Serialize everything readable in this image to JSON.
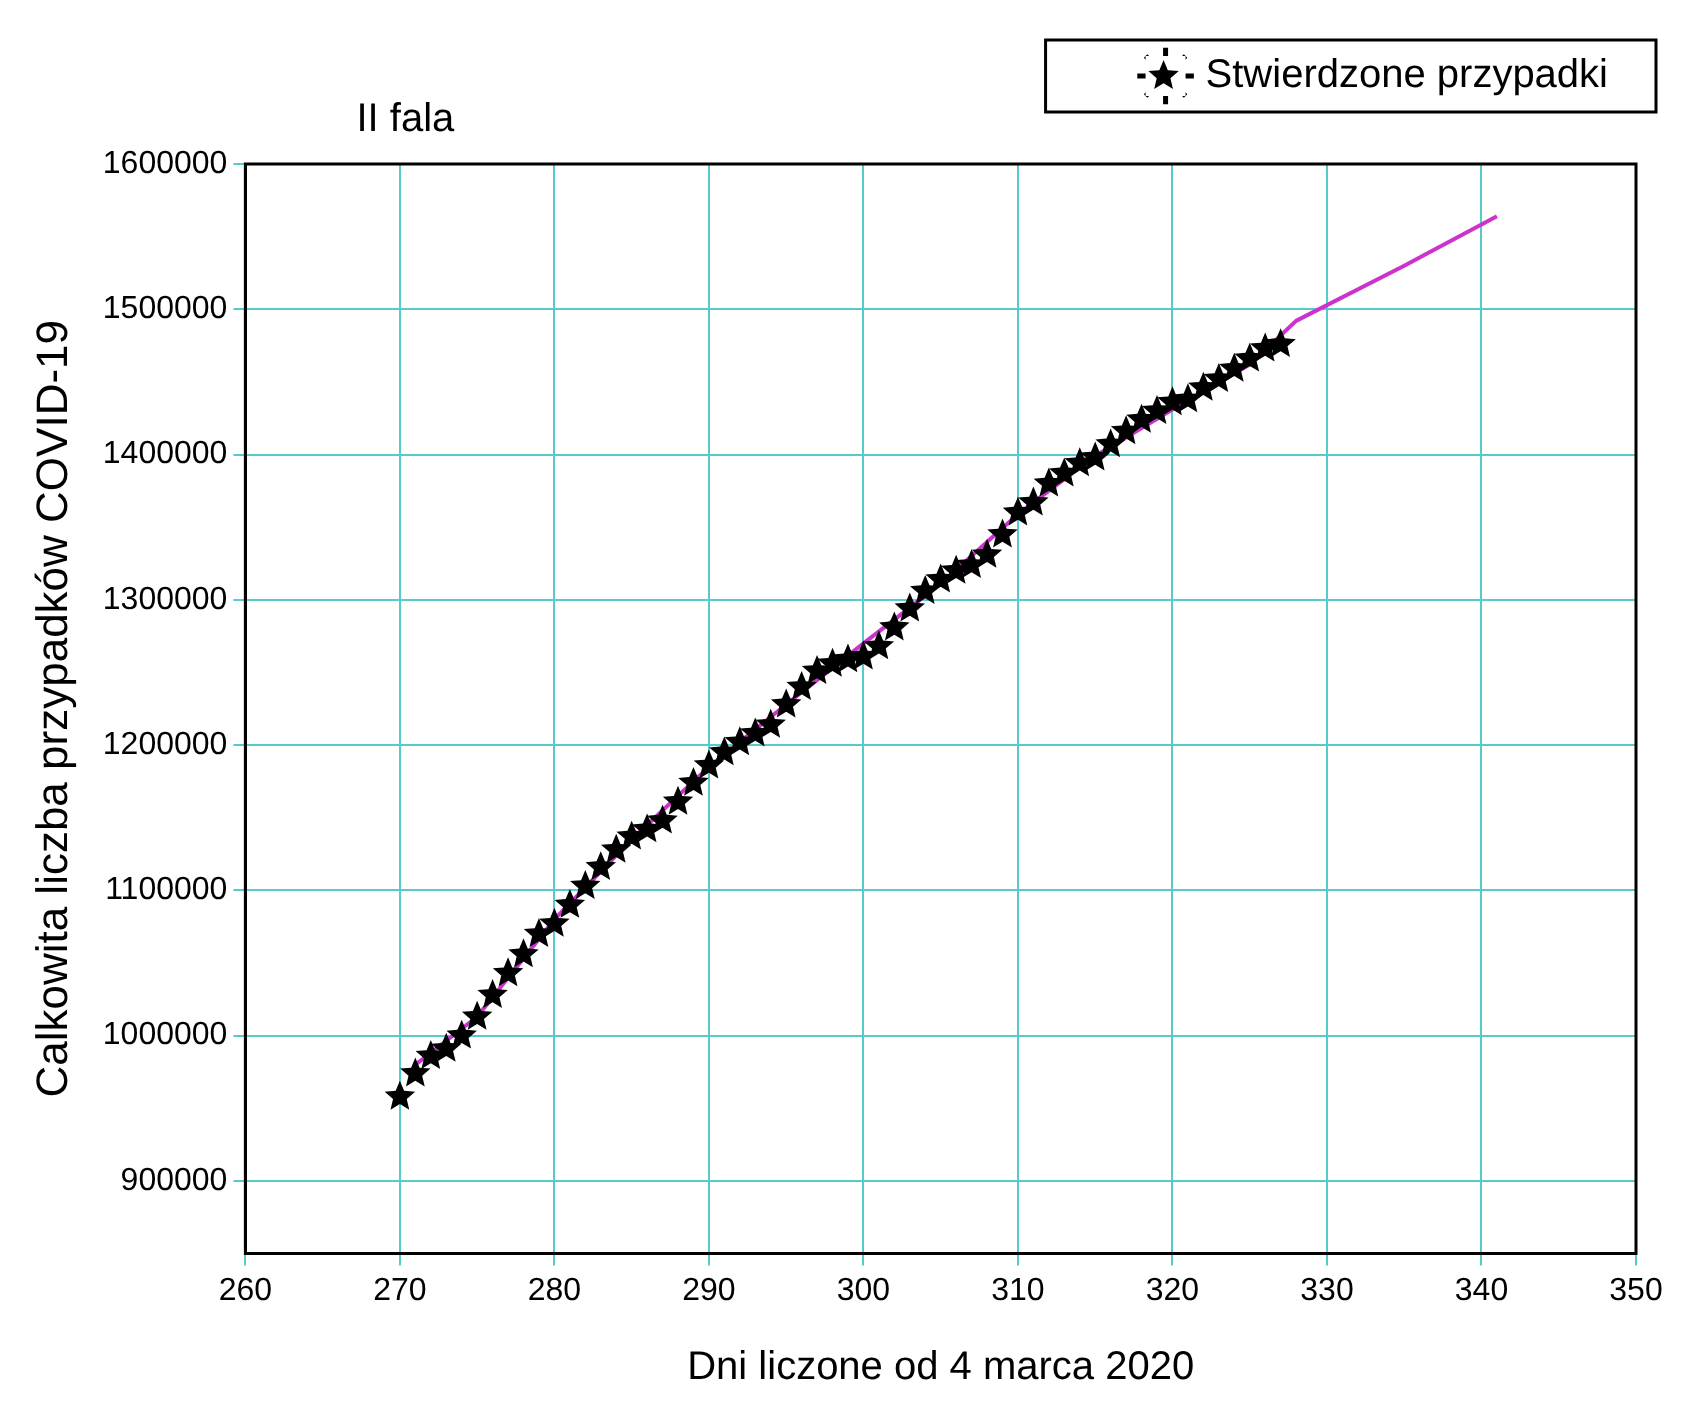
{
  "chart_data": {
    "type": "scatter",
    "title": "II fala",
    "xlabel": "Dni liczone od 4 marca 2020",
    "ylabel": "Calkowita liczba przypadków COVID-19",
    "xlim": [
      260,
      350
    ],
    "xticks": [
      260,
      270,
      280,
      290,
      300,
      310,
      320,
      330,
      340,
      350
    ],
    "ylim": [
      850000,
      1600000
    ],
    "yticks": [
      900000,
      1000000,
      1100000,
      1200000,
      1300000,
      1400000,
      1500000,
      1600000
    ],
    "grid": true,
    "legend": "top right",
    "series": [
      {
        "name": "Stwierdzone przypadki",
        "type": "scatter",
        "color": "#000000",
        "marker": "star",
        "x": [
          270,
          271,
          272,
          273,
          274,
          275,
          276,
          277,
          278,
          279,
          280,
          281,
          282,
          283,
          284,
          285,
          286,
          287,
          288,
          289,
          290,
          291,
          292,
          293,
          294,
          295,
          296,
          297,
          298,
          299,
          300,
          301,
          302,
          303,
          304,
          305,
          306,
          307,
          308,
          309,
          310,
          311,
          312,
          313,
          314,
          315,
          316,
          317,
          318,
          319,
          320,
          321,
          322,
          323,
          324,
          325,
          326,
          327
        ],
        "values": [
          958000,
          974000,
          986000,
          991000,
          1000000,
          1013000,
          1028000,
          1043000,
          1056000,
          1070000,
          1077000,
          1090000,
          1103000,
          1116000,
          1128000,
          1137000,
          1142000,
          1148000,
          1161000,
          1174000,
          1186000,
          1195000,
          1202000,
          1208000,
          1214000,
          1228000,
          1240000,
          1251000,
          1256000,
          1259000,
          1261000,
          1268000,
          1281000,
          1294000,
          1306000,
          1314000,
          1320000,
          1324000,
          1331000,
          1345000,
          1360000,
          1367000,
          1380000,
          1387000,
          1394000,
          1398000,
          1407000,
          1416000,
          1424000,
          1430000,
          1436000,
          1438000,
          1446000,
          1452000,
          1459000,
          1466000,
          1473000,
          1476000
        ]
      },
      {
        "type": "line",
        "color": "#cc33cc",
        "marker": "none",
        "line_style": "solid",
        "x": [
          271,
          275,
          280,
          285,
          290,
          295,
          300,
          305,
          310,
          315,
          320,
          325,
          328,
          335,
          341
        ],
        "values": [
          980000,
          1013000,
          1080000,
          1135000,
          1185000,
          1228000,
          1270000,
          1311000,
          1359000,
          1399000,
          1431000,
          1462000,
          1492000,
          1530000,
          1564000
        ]
      }
    ]
  }
}
